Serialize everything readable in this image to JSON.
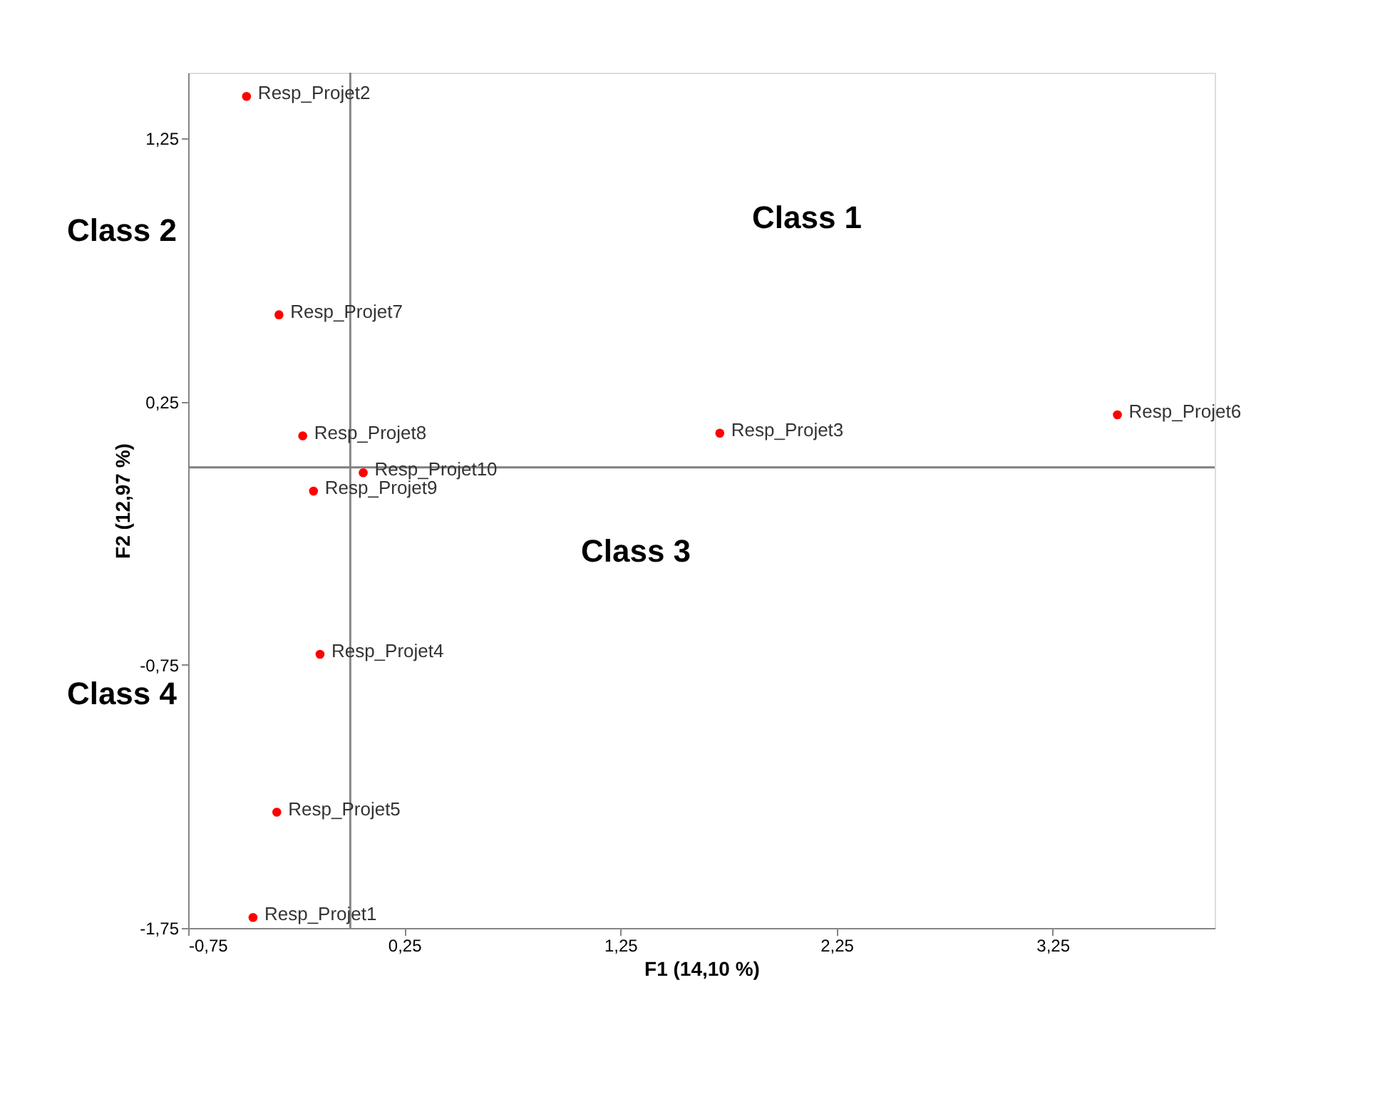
{
  "chart_data": {
    "type": "scatter",
    "xlabel": "F1 (14,10 %)",
    "ylabel": "F2 (12,97 %)",
    "xlim": [
      -0.75,
      4
    ],
    "ylim": [
      -1.75,
      1.5
    ],
    "xticks": [
      {
        "value": -0.75,
        "label": "-0,75"
      },
      {
        "value": 0.25,
        "label": "0,25"
      },
      {
        "value": 1.25,
        "label": "1,25"
      },
      {
        "value": 2.25,
        "label": "2,25"
      },
      {
        "value": 3.25,
        "label": "3,25"
      }
    ],
    "yticks": [
      {
        "value": -1.75,
        "label": "-1,75"
      },
      {
        "value": -0.75,
        "label": "-0,75"
      },
      {
        "value": 0.25,
        "label": "0,25"
      },
      {
        "value": 1.25,
        "label": "1,25"
      }
    ],
    "grid": false,
    "legend": false,
    "marker": "circle",
    "ref_lines": [
      {
        "axis": "x",
        "value": 0,
        "color": "#868686"
      },
      {
        "axis": "y",
        "value": 0,
        "color": "#7f7f7f"
      }
    ],
    "series": [
      {
        "name": "Resp_Projet1",
        "color": "#ff0000",
        "x": [
          -0.45
        ],
        "values": [
          -1.71
        ]
      },
      {
        "name": "Resp_Projet2",
        "color": "#ff0000",
        "x": [
          -0.48
        ],
        "values": [
          1.41
        ]
      },
      {
        "name": "Resp_Projet3",
        "color": "#ff0000",
        "x": [
          1.71
        ],
        "values": [
          0.13
        ]
      },
      {
        "name": "Resp_Projet4",
        "color": "#ff0000",
        "x": [
          -0.14
        ],
        "values": [
          -0.71
        ]
      },
      {
        "name": "Resp_Projet5",
        "color": "#ff0000",
        "x": [
          -0.34
        ],
        "values": [
          -1.31
        ]
      },
      {
        "name": "Resp_Projet6",
        "color": "#ff0000",
        "x": [
          3.55
        ],
        "values": [
          0.2
        ]
      },
      {
        "name": "Resp_Projet7",
        "color": "#ff0000",
        "x": [
          -0.33
        ],
        "values": [
          0.58
        ]
      },
      {
        "name": "Resp_Projet8",
        "color": "#ff0000",
        "x": [
          -0.22
        ],
        "values": [
          0.12
        ]
      },
      {
        "name": "Resp_Projet9",
        "color": "#ff0000",
        "x": [
          -0.17
        ],
        "values": [
          -0.09
        ]
      },
      {
        "name": "Resp_Projet10",
        "color": "#ff0000",
        "x": [
          0.06
        ],
        "values": [
          -0.02
        ]
      }
    ],
    "annotations": [
      "Class 1",
      "Class 2",
      "Class 3",
      "Class  4"
    ]
  }
}
